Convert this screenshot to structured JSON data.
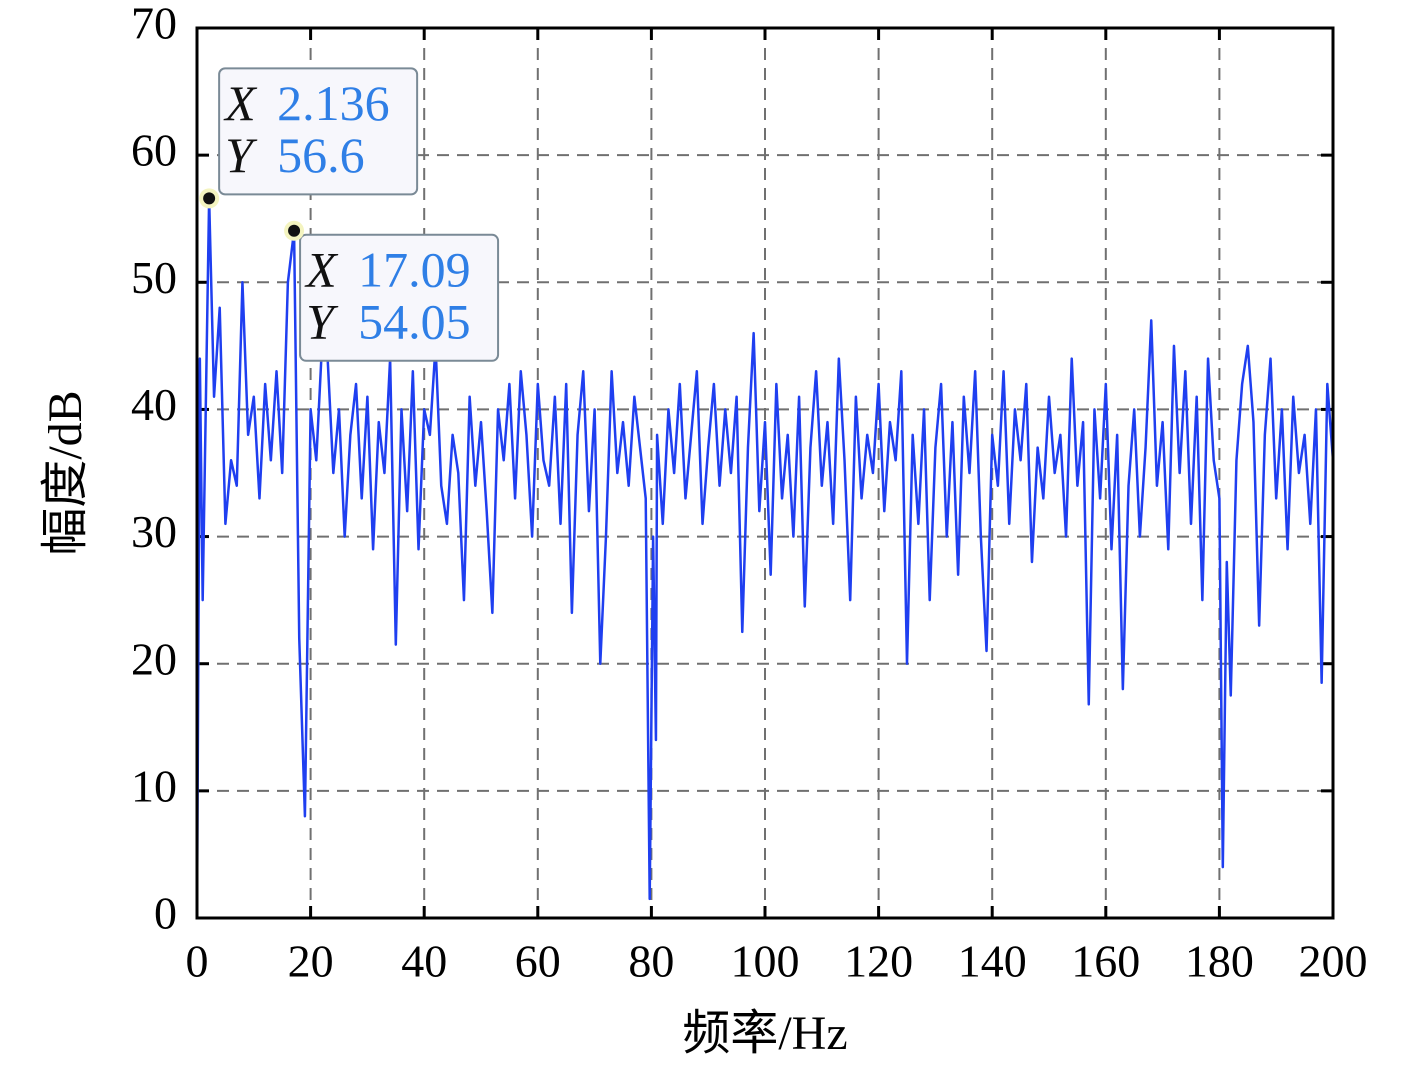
{
  "chart_data": {
    "type": "line",
    "xlabel": "频率/Hz",
    "ylabel": "幅度/dB",
    "color": "#1f3ff0",
    "x": [
      0,
      0.5,
      1,
      2.136,
      3,
      4,
      5,
      6,
      7,
      8,
      9,
      10,
      11,
      12,
      13,
      14,
      15,
      16,
      17.09,
      18,
      19,
      20,
      21,
      22,
      23,
      24,
      25,
      26,
      27,
      28,
      29,
      30,
      31,
      32,
      33,
      34,
      35,
      36,
      37,
      38,
      39,
      40,
      41,
      42,
      43,
      44,
      45,
      46,
      47,
      48,
      49,
      50,
      51,
      52,
      53,
      54,
      55,
      56,
      57,
      58,
      59,
      60,
      61,
      62,
      63,
      64,
      65,
      66,
      67,
      68,
      69,
      70,
      71,
      72,
      73,
      74,
      75,
      76,
      77,
      78,
      79,
      79.7,
      80.3,
      80.8,
      81,
      82,
      83,
      84,
      85,
      86,
      87,
      88,
      89,
      90,
      91,
      92,
      93,
      94,
      95,
      96,
      97,
      98,
      99,
      100,
      101,
      102,
      103,
      104,
      105,
      106,
      107,
      108,
      109,
      110,
      111,
      112,
      113,
      114,
      115,
      116,
      117,
      118,
      119,
      120,
      121,
      122,
      123,
      124,
      125,
      126,
      127,
      128,
      129,
      130,
      131,
      132,
      133,
      134,
      135,
      136,
      137,
      138,
      139,
      140,
      141,
      142,
      143,
      144,
      145,
      146,
      147,
      148,
      149,
      150,
      151,
      152,
      153,
      154,
      155,
      156,
      157,
      158,
      159,
      160,
      161,
      162,
      163,
      164,
      165,
      166,
      167,
      168,
      169,
      170,
      171,
      172,
      173,
      174,
      175,
      176,
      177,
      178,
      179,
      180,
      180.6,
      181.3,
      182,
      183,
      184,
      185,
      186,
      187,
      188,
      189,
      190,
      191,
      192,
      193,
      194,
      195,
      196,
      197,
      198,
      199,
      200
    ],
    "values": [
      0,
      44,
      25,
      56.6,
      41,
      48,
      31,
      36,
      34,
      50,
      38,
      41,
      33,
      42,
      36,
      43,
      35,
      50,
      54.05,
      22,
      8,
      40,
      36,
      45,
      44,
      35,
      40,
      30,
      38,
      42,
      33,
      41,
      29,
      39,
      35,
      44,
      21.5,
      40,
      32,
      43,
      29,
      40,
      38,
      45,
      34,
      31,
      38,
      35,
      25,
      41,
      34,
      39,
      32,
      24,
      40,
      36,
      42,
      33,
      43,
      38,
      30,
      42,
      36,
      34,
      41,
      31,
      42,
      24,
      38,
      43,
      32,
      40,
      20,
      30,
      43,
      35,
      39,
      34,
      41,
      37,
      33,
      1.5,
      30,
      14,
      38,
      31,
      40,
      35,
      42,
      33,
      38,
      43,
      31,
      37,
      42,
      34,
      40,
      35,
      41,
      22.5,
      37,
      46,
      32,
      39,
      27,
      42,
      33,
      38,
      30,
      41,
      24.5,
      37,
      43,
      34,
      39,
      31,
      44,
      36,
      25,
      41,
      33,
      38,
      35,
      42,
      32,
      39,
      36,
      43,
      20,
      38,
      31,
      40,
      25,
      37,
      42,
      30,
      39,
      27,
      41,
      35,
      43,
      30,
      21,
      38,
      34,
      43,
      31,
      40,
      36,
      42,
      28,
      37,
      33,
      41,
      35,
      38,
      30,
      44,
      34,
      39,
      16.8,
      40,
      33,
      42,
      29,
      38,
      18,
      34,
      40,
      30,
      37,
      47,
      34,
      39,
      29,
      45,
      35,
      43,
      31,
      41,
      25,
      44,
      36,
      33,
      4,
      28,
      17.5,
      36,
      42,
      45,
      39,
      23,
      38,
      44,
      33,
      40,
      29,
      41,
      35,
      38,
      31,
      40,
      18.5,
      42,
      36
    ],
    "xlim": [
      0,
      200
    ],
    "ylim": [
      0,
      70
    ],
    "xticks": [
      0,
      20,
      40,
      60,
      80,
      100,
      120,
      140,
      160,
      180,
      200
    ],
    "yticks": [
      0,
      10,
      20,
      30,
      40,
      50,
      60,
      70
    ],
    "grid": true,
    "annotations": [
      {
        "x_name": "X",
        "x": 2.136,
        "y_name": "Y",
        "y": 56.6
      },
      {
        "x_name": "X",
        "x": 17.09,
        "y_name": "Y",
        "y": 54.05
      }
    ]
  }
}
